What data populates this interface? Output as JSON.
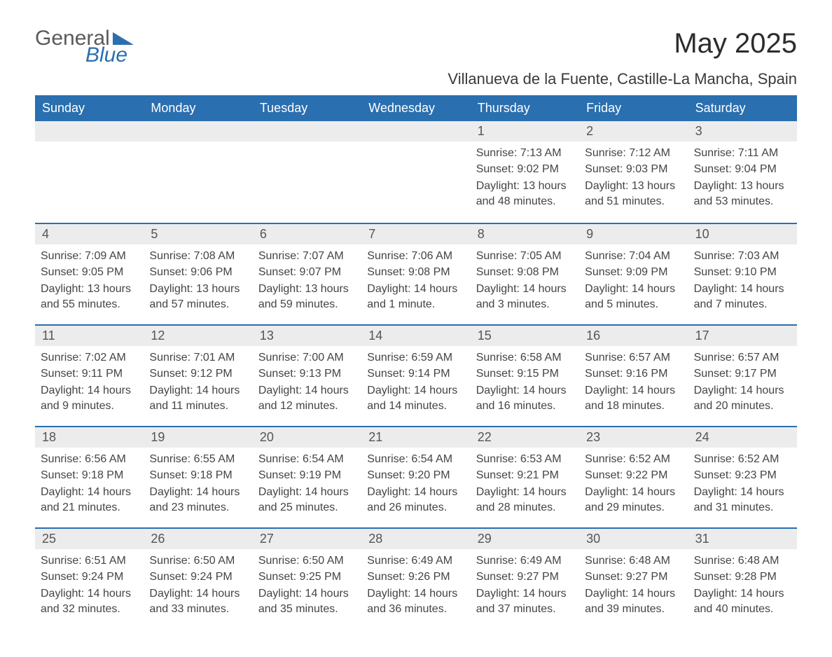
{
  "brand": {
    "word1": "General",
    "word2": "Blue"
  },
  "title": "May 2025",
  "location": "Villanueva de la Fuente, Castille-La Mancha, Spain",
  "colors": {
    "header_bg": "#2a6fb0",
    "header_text": "#ffffff",
    "daynum_bg": "#ececec",
    "body_text": "#3a3a3a",
    "rule": "#2a6fb0",
    "page_bg": "#ffffff"
  },
  "daysOfWeek": [
    "Sunday",
    "Monday",
    "Tuesday",
    "Wednesday",
    "Thursday",
    "Friday",
    "Saturday"
  ],
  "labels": {
    "sunrise": "Sunrise: ",
    "sunset": "Sunset: ",
    "daylight": "Daylight: "
  },
  "weeks": [
    [
      null,
      null,
      null,
      null,
      {
        "n": "1",
        "sr": "7:13 AM",
        "ss": "9:02 PM",
        "dl": "13 hours and 48 minutes."
      },
      {
        "n": "2",
        "sr": "7:12 AM",
        "ss": "9:03 PM",
        "dl": "13 hours and 51 minutes."
      },
      {
        "n": "3",
        "sr": "7:11 AM",
        "ss": "9:04 PM",
        "dl": "13 hours and 53 minutes."
      }
    ],
    [
      {
        "n": "4",
        "sr": "7:09 AM",
        "ss": "9:05 PM",
        "dl": "13 hours and 55 minutes."
      },
      {
        "n": "5",
        "sr": "7:08 AM",
        "ss": "9:06 PM",
        "dl": "13 hours and 57 minutes."
      },
      {
        "n": "6",
        "sr": "7:07 AM",
        "ss": "9:07 PM",
        "dl": "13 hours and 59 minutes."
      },
      {
        "n": "7",
        "sr": "7:06 AM",
        "ss": "9:08 PM",
        "dl": "14 hours and 1 minute."
      },
      {
        "n": "8",
        "sr": "7:05 AM",
        "ss": "9:08 PM",
        "dl": "14 hours and 3 minutes."
      },
      {
        "n": "9",
        "sr": "7:04 AM",
        "ss": "9:09 PM",
        "dl": "14 hours and 5 minutes."
      },
      {
        "n": "10",
        "sr": "7:03 AM",
        "ss": "9:10 PM",
        "dl": "14 hours and 7 minutes."
      }
    ],
    [
      {
        "n": "11",
        "sr": "7:02 AM",
        "ss": "9:11 PM",
        "dl": "14 hours and 9 minutes."
      },
      {
        "n": "12",
        "sr": "7:01 AM",
        "ss": "9:12 PM",
        "dl": "14 hours and 11 minutes."
      },
      {
        "n": "13",
        "sr": "7:00 AM",
        "ss": "9:13 PM",
        "dl": "14 hours and 12 minutes."
      },
      {
        "n": "14",
        "sr": "6:59 AM",
        "ss": "9:14 PM",
        "dl": "14 hours and 14 minutes."
      },
      {
        "n": "15",
        "sr": "6:58 AM",
        "ss": "9:15 PM",
        "dl": "14 hours and 16 minutes."
      },
      {
        "n": "16",
        "sr": "6:57 AM",
        "ss": "9:16 PM",
        "dl": "14 hours and 18 minutes."
      },
      {
        "n": "17",
        "sr": "6:57 AM",
        "ss": "9:17 PM",
        "dl": "14 hours and 20 minutes."
      }
    ],
    [
      {
        "n": "18",
        "sr": "6:56 AM",
        "ss": "9:18 PM",
        "dl": "14 hours and 21 minutes."
      },
      {
        "n": "19",
        "sr": "6:55 AM",
        "ss": "9:18 PM",
        "dl": "14 hours and 23 minutes."
      },
      {
        "n": "20",
        "sr": "6:54 AM",
        "ss": "9:19 PM",
        "dl": "14 hours and 25 minutes."
      },
      {
        "n": "21",
        "sr": "6:54 AM",
        "ss": "9:20 PM",
        "dl": "14 hours and 26 minutes."
      },
      {
        "n": "22",
        "sr": "6:53 AM",
        "ss": "9:21 PM",
        "dl": "14 hours and 28 minutes."
      },
      {
        "n": "23",
        "sr": "6:52 AM",
        "ss": "9:22 PM",
        "dl": "14 hours and 29 minutes."
      },
      {
        "n": "24",
        "sr": "6:52 AM",
        "ss": "9:23 PM",
        "dl": "14 hours and 31 minutes."
      }
    ],
    [
      {
        "n": "25",
        "sr": "6:51 AM",
        "ss": "9:24 PM",
        "dl": "14 hours and 32 minutes."
      },
      {
        "n": "26",
        "sr": "6:50 AM",
        "ss": "9:24 PM",
        "dl": "14 hours and 33 minutes."
      },
      {
        "n": "27",
        "sr": "6:50 AM",
        "ss": "9:25 PM",
        "dl": "14 hours and 35 minutes."
      },
      {
        "n": "28",
        "sr": "6:49 AM",
        "ss": "9:26 PM",
        "dl": "14 hours and 36 minutes."
      },
      {
        "n": "29",
        "sr": "6:49 AM",
        "ss": "9:27 PM",
        "dl": "14 hours and 37 minutes."
      },
      {
        "n": "30",
        "sr": "6:48 AM",
        "ss": "9:27 PM",
        "dl": "14 hours and 39 minutes."
      },
      {
        "n": "31",
        "sr": "6:48 AM",
        "ss": "9:28 PM",
        "dl": "14 hours and 40 minutes."
      }
    ]
  ]
}
